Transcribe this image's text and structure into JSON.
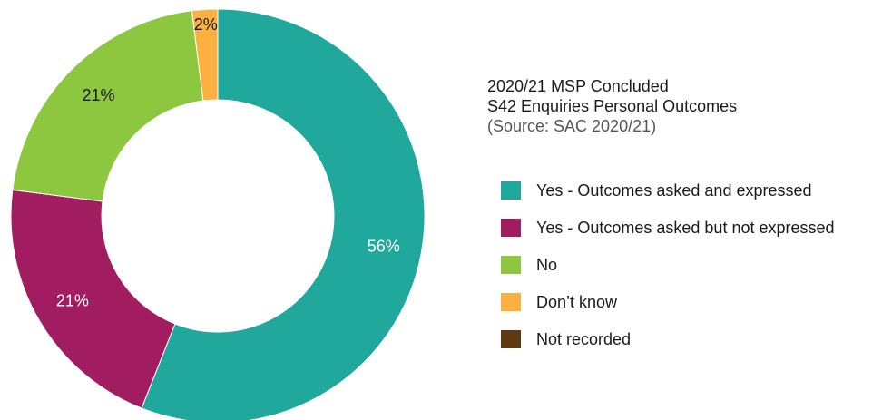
{
  "chart_data": {
    "type": "pie",
    "variant": "donut",
    "title_lines": [
      "2020/21 MSP Concluded",
      "S42 Enquiries Personal Outcomes"
    ],
    "subtitle": "(Source: SAC 2020/21)",
    "legend_position": "right",
    "slices": [
      {
        "label": "Yes - Outcomes asked and expressed",
        "value": 56,
        "display": "56%",
        "color": "#20a89c",
        "label_color": "#ffffff"
      },
      {
        "label": "Yes - Outcomes asked but not expressed",
        "value": 21,
        "display": "21%",
        "color": "#a11c60",
        "label_color": "#ffffff"
      },
      {
        "label": "No",
        "value": 21,
        "display": "21%",
        "color": "#8dc63f",
        "label_color": "#1a1a1a"
      },
      {
        "label": "Don’t know",
        "value": 2,
        "display": "2%",
        "color": "#fbb040",
        "label_color": "#1a1a1a"
      },
      {
        "label": "Not recorded",
        "value": 0,
        "display": "",
        "color": "#603913",
        "label_color": "#1a1a1a"
      }
    ]
  }
}
